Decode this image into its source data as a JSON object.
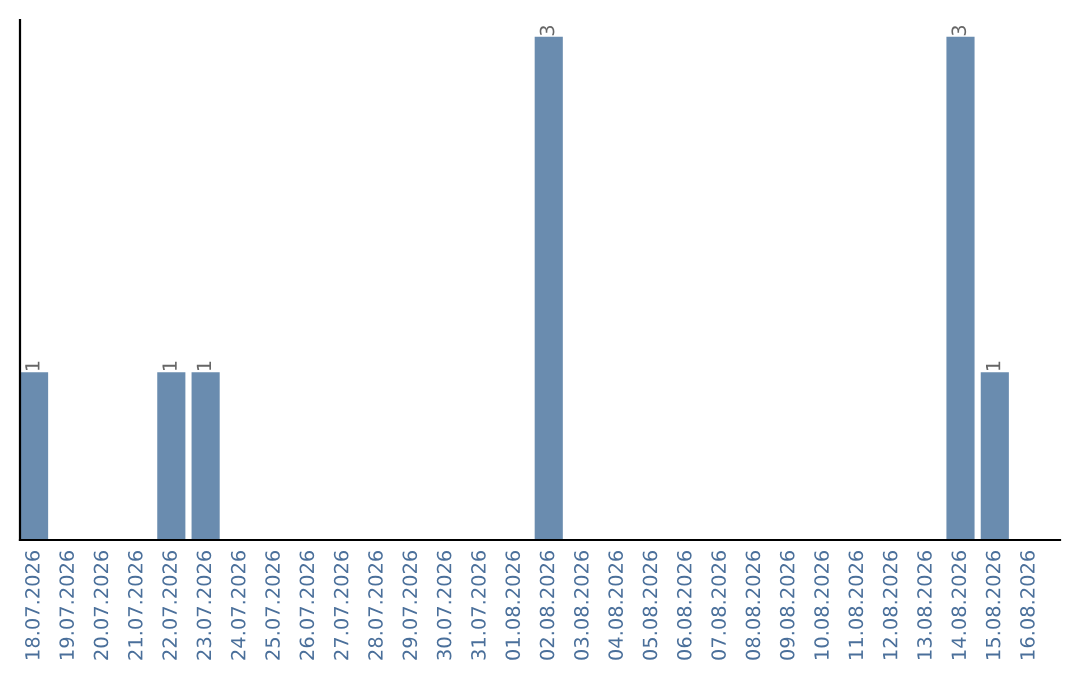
{
  "chart_data": {
    "type": "bar",
    "categories": [
      "18.07.2026",
      "19.07.2026",
      "20.07.2026",
      "21.07.2026",
      "22.07.2026",
      "23.07.2026",
      "24.07.2026",
      "25.07.2026",
      "26.07.2026",
      "27.07.2026",
      "28.07.2026",
      "29.07.2026",
      "30.07.2026",
      "31.07.2026",
      "01.08.2026",
      "02.08.2026",
      "03.08.2026",
      "04.08.2026",
      "05.08.2026",
      "06.08.2026",
      "07.08.2026",
      "08.08.2026",
      "09.08.2026",
      "10.08.2026",
      "11.08.2026",
      "12.08.2026",
      "13.08.2026",
      "14.08.2026",
      "15.08.2026",
      "16.08.2026"
    ],
    "values": [
      1,
      0,
      0,
      0,
      1,
      1,
      0,
      0,
      0,
      0,
      0,
      0,
      0,
      0,
      0,
      3,
      0,
      0,
      0,
      0,
      0,
      0,
      0,
      0,
      0,
      0,
      0,
      3,
      1,
      0
    ],
    "value_labels": [
      "1",
      null,
      null,
      null,
      "1",
      "1",
      null,
      null,
      null,
      null,
      null,
      null,
      null,
      null,
      null,
      "3",
      null,
      null,
      null,
      null,
      null,
      null,
      null,
      null,
      null,
      null,
      null,
      "3",
      "1",
      null
    ],
    "color": "#6a8caf",
    "ylim": [
      0,
      3.1
    ],
    "tick_labels": "x",
    "grid": false,
    "legend": false
  }
}
